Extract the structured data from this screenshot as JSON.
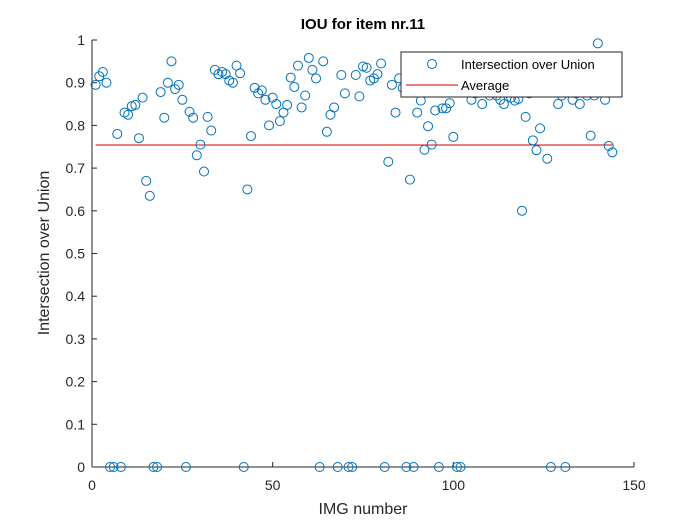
{
  "chart_data": {
    "type": "scatter",
    "title": "IOU for item nr.11",
    "xlabel": "IMG number",
    "ylabel": "Intersection over Union",
    "xlim": [
      0,
      150
    ],
    "ylim": [
      0,
      1
    ],
    "xticks": [
      0,
      50,
      100,
      150
    ],
    "xtick_labels": [
      "0",
      "50",
      "100",
      "150"
    ],
    "yticks": [
      0,
      0.1,
      0.2,
      0.3,
      0.4,
      0.5,
      0.6,
      0.7,
      0.8,
      0.9,
      1
    ],
    "ytick_labels": [
      "0",
      "0.1",
      "0.2",
      "0.3",
      "0.4",
      "0.5",
      "0.6",
      "0.7",
      "0.8",
      "0.9",
      "1"
    ],
    "grid": false,
    "legend_position": "top-right",
    "series": [
      {
        "name": "Intersection over Union",
        "marker": "circle",
        "color": "#0072BD",
        "x": [
          1,
          2,
          3,
          4,
          5,
          6,
          7,
          8,
          9,
          10,
          11,
          12,
          13,
          14,
          15,
          16,
          17,
          18,
          19,
          20,
          21,
          22,
          23,
          24,
          25,
          26,
          27,
          28,
          29,
          30,
          31,
          32,
          33,
          34,
          35,
          36,
          37,
          38,
          39,
          40,
          41,
          42,
          43,
          44,
          45,
          46,
          47,
          48,
          49,
          50,
          51,
          52,
          53,
          54,
          55,
          56,
          57,
          58,
          59,
          60,
          61,
          62,
          63,
          64,
          65,
          66,
          67,
          68,
          69,
          70,
          71,
          72,
          73,
          74,
          75,
          76,
          77,
          78,
          79,
          80,
          81,
          82,
          83,
          84,
          85,
          86,
          87,
          88,
          89,
          90,
          91,
          92,
          93,
          94,
          95,
          96,
          97,
          98,
          99,
          100,
          101,
          102,
          103,
          104,
          105,
          106,
          107,
          108,
          109,
          110,
          111,
          112,
          113,
          114,
          115,
          116,
          117,
          118,
          119,
          120,
          121,
          122,
          123,
          124,
          125,
          126,
          127,
          128,
          129,
          130,
          131,
          132,
          133,
          134,
          135,
          136,
          137,
          138,
          139,
          140,
          141,
          142,
          143,
          144
        ],
        "y": [
          0.895,
          0.915,
          0.925,
          0.9,
          0,
          0,
          0.78,
          0,
          0.83,
          0.825,
          0.845,
          0.848,
          0.77,
          0.865,
          0.67,
          0.635,
          0,
          0,
          0.878,
          0.818,
          0.9,
          0.95,
          0.885,
          0.895,
          0.86,
          0,
          0.832,
          0.818,
          0.73,
          0.755,
          0.692,
          0.82,
          0.788,
          0.93,
          0.92,
          0.925,
          0.92,
          0.905,
          0.9,
          0.94,
          0.922,
          0,
          0.65,
          0.775,
          0.888,
          0.875,
          0.882,
          0.86,
          0.8,
          0.865,
          0.85,
          0.81,
          0.83,
          0.848,
          0.912,
          0.89,
          0.94,
          0.842,
          0.87,
          0.958,
          0.93,
          0.91,
          0,
          0.95,
          0.785,
          0.825,
          0.842,
          0,
          0.918,
          0.875,
          0,
          0,
          0.918,
          0.868,
          0.938,
          0.935,
          0.905,
          0.91,
          0.92,
          0.945,
          0,
          0.715,
          0.895,
          0.83,
          0.91,
          0.888,
          0,
          0.673,
          0,
          0.83,
          0.858,
          0.743,
          0.798,
          0.755,
          0.835,
          0,
          0.84,
          0.84,
          0.852,
          0.773,
          0,
          0,
          0.89,
          0.88,
          0.86,
          0.875,
          0.885,
          0.85,
          0.895,
          0.87,
          0.88,
          0.87,
          0.86,
          0.85,
          0.88,
          0.865,
          0.858,
          0.862,
          0.6,
          0.82,
          0.875,
          0.765,
          0.742,
          0.793,
          0.88,
          0.722,
          0,
          0.88,
          0.85,
          0.87,
          0,
          0.89,
          0.86,
          0.875,
          0.85,
          0.88,
          0.87,
          0.776,
          0.87,
          0.992,
          0.88,
          0.86,
          0.752,
          0.737
        ]
      },
      {
        "name": "Average",
        "type": "line",
        "color": "#D00000",
        "x": [
          1,
          144
        ],
        "y": [
          0.754,
          0.754
        ]
      }
    ]
  }
}
